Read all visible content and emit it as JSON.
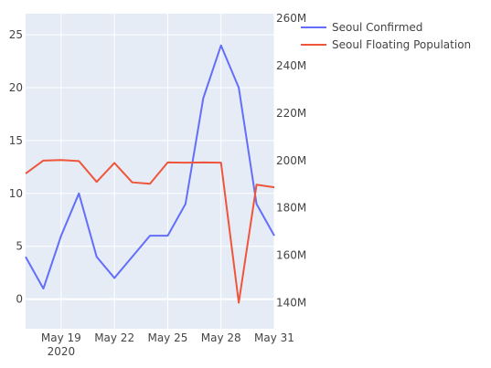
{
  "chart_data": {
    "type": "line",
    "x": [
      "2020-05-17",
      "2020-05-18",
      "2020-05-19",
      "2020-05-20",
      "2020-05-21",
      "2020-05-22",
      "2020-05-23",
      "2020-05-24",
      "2020-05-25",
      "2020-05-26",
      "2020-05-27",
      "2020-05-28",
      "2020-05-29",
      "2020-05-30",
      "2020-05-31"
    ],
    "x_range": [
      "2020-05-17",
      "2020-05-31"
    ],
    "x_ticks": [
      {
        "date": "2020-05-19",
        "label": "May 19",
        "sublabel": "2020"
      },
      {
        "date": "2020-05-22",
        "label": "May 22"
      },
      {
        "date": "2020-05-25",
        "label": "May 25"
      },
      {
        "date": "2020-05-28",
        "label": "May 28"
      },
      {
        "date": "2020-05-31",
        "label": "May 31"
      }
    ],
    "series": [
      {
        "name": "Seoul Confirmed",
        "axis": "y",
        "color": "#636efa",
        "values": [
          4,
          1,
          6,
          10,
          4,
          2,
          4,
          6,
          6,
          9,
          19,
          24,
          20,
          9,
          6
        ]
      },
      {
        "name": "Seoul Floating Population",
        "axis": "y2",
        "color": "#ef553b",
        "values": [
          194500000,
          200000000,
          200200000,
          199800000,
          191000000,
          199000000,
          190800000,
          190200000,
          199200000,
          199100000,
          199200000,
          199100000,
          140000000,
          189800000,
          188700000
        ]
      }
    ],
    "y_range": [
      -2.8,
      27
    ],
    "y_ticks": [
      {
        "value": 0,
        "label": "0"
      },
      {
        "value": 5,
        "label": "5"
      },
      {
        "value": 10,
        "label": "10"
      },
      {
        "value": 15,
        "label": "15"
      },
      {
        "value": 20,
        "label": "20"
      },
      {
        "value": 25,
        "label": "25"
      }
    ],
    "y2_range": [
      129000000,
      262000000
    ],
    "y2_ticks": [
      {
        "value": 140000000,
        "label": "140M"
      },
      {
        "value": 160000000,
        "label": "160M"
      },
      {
        "value": 180000000,
        "label": "180M"
      },
      {
        "value": 200000000,
        "label": "200M"
      },
      {
        "value": 220000000,
        "label": "220M"
      },
      {
        "value": 240000000,
        "label": "240M"
      },
      {
        "value": 260000000,
        "label": "260M"
      }
    ],
    "grid": true,
    "legend_position": "top-right",
    "plot_background": "#e5ecf6",
    "grid_color": "#ffffff"
  }
}
